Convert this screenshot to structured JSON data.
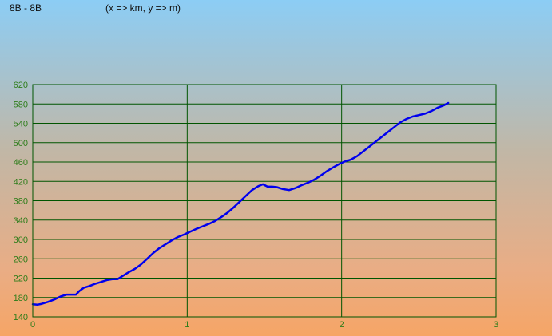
{
  "header": {
    "title": "8B - 8B",
    "subtitle": "(x => km, y => m)"
  },
  "colors": {
    "grid": "#005500",
    "line": "#0000ee",
    "ticks": "#2e7d1a"
  },
  "chart_data": {
    "type": "line",
    "title": "8B - 8B",
    "subtitle": "(x => km, y => m)",
    "xlabel": "",
    "ylabel": "",
    "xlim": [
      0,
      3
    ],
    "ylim": [
      140,
      620
    ],
    "xticks": [
      0,
      1,
      2,
      3
    ],
    "yticks": [
      140,
      180,
      220,
      260,
      300,
      340,
      380,
      420,
      460,
      500,
      540,
      580,
      620
    ],
    "grid": true,
    "series": [
      {
        "name": "",
        "x": [
          0,
          0.03,
          0.06,
          0.1,
          0.14,
          0.18,
          0.22,
          0.26,
          0.28,
          0.3,
          0.33,
          0.37,
          0.4,
          0.44,
          0.48,
          0.52,
          0.55,
          0.58,
          0.62,
          0.66,
          0.7,
          0.74,
          0.78,
          0.82,
          0.86,
          0.9,
          0.94,
          0.98,
          1.02,
          1.06,
          1.1,
          1.14,
          1.18,
          1.22,
          1.26,
          1.3,
          1.34,
          1.38,
          1.42,
          1.46,
          1.49,
          1.52,
          1.55,
          1.58,
          1.62,
          1.66,
          1.7,
          1.74,
          1.78,
          1.82,
          1.86,
          1.9,
          1.94,
          1.98,
          2.02,
          2.06,
          2.1,
          2.14,
          2.18,
          2.22,
          2.26,
          2.3,
          2.34,
          2.38,
          2.42,
          2.46,
          2.5,
          2.54,
          2.58,
          2.62,
          2.66,
          2.69
        ],
        "y": [
          166,
          165,
          167,
          171,
          176,
          182,
          186,
          186,
          186,
          193,
          200,
          204,
          208,
          212,
          216,
          218,
          218,
          224,
          232,
          239,
          248,
          260,
          272,
          282,
          290,
          298,
          305,
          310,
          316,
          322,
          327,
          332,
          338,
          346,
          355,
          366,
          378,
          390,
          402,
          410,
          414,
          409,
          409,
          408,
          404,
          402,
          406,
          412,
          417,
          423,
          431,
          440,
          448,
          455,
          461,
          465,
          472,
          482,
          492,
          502,
          512,
          522,
          532,
          542,
          549,
          554,
          557,
          560,
          565,
          572,
          577,
          582
        ]
      }
    ]
  }
}
